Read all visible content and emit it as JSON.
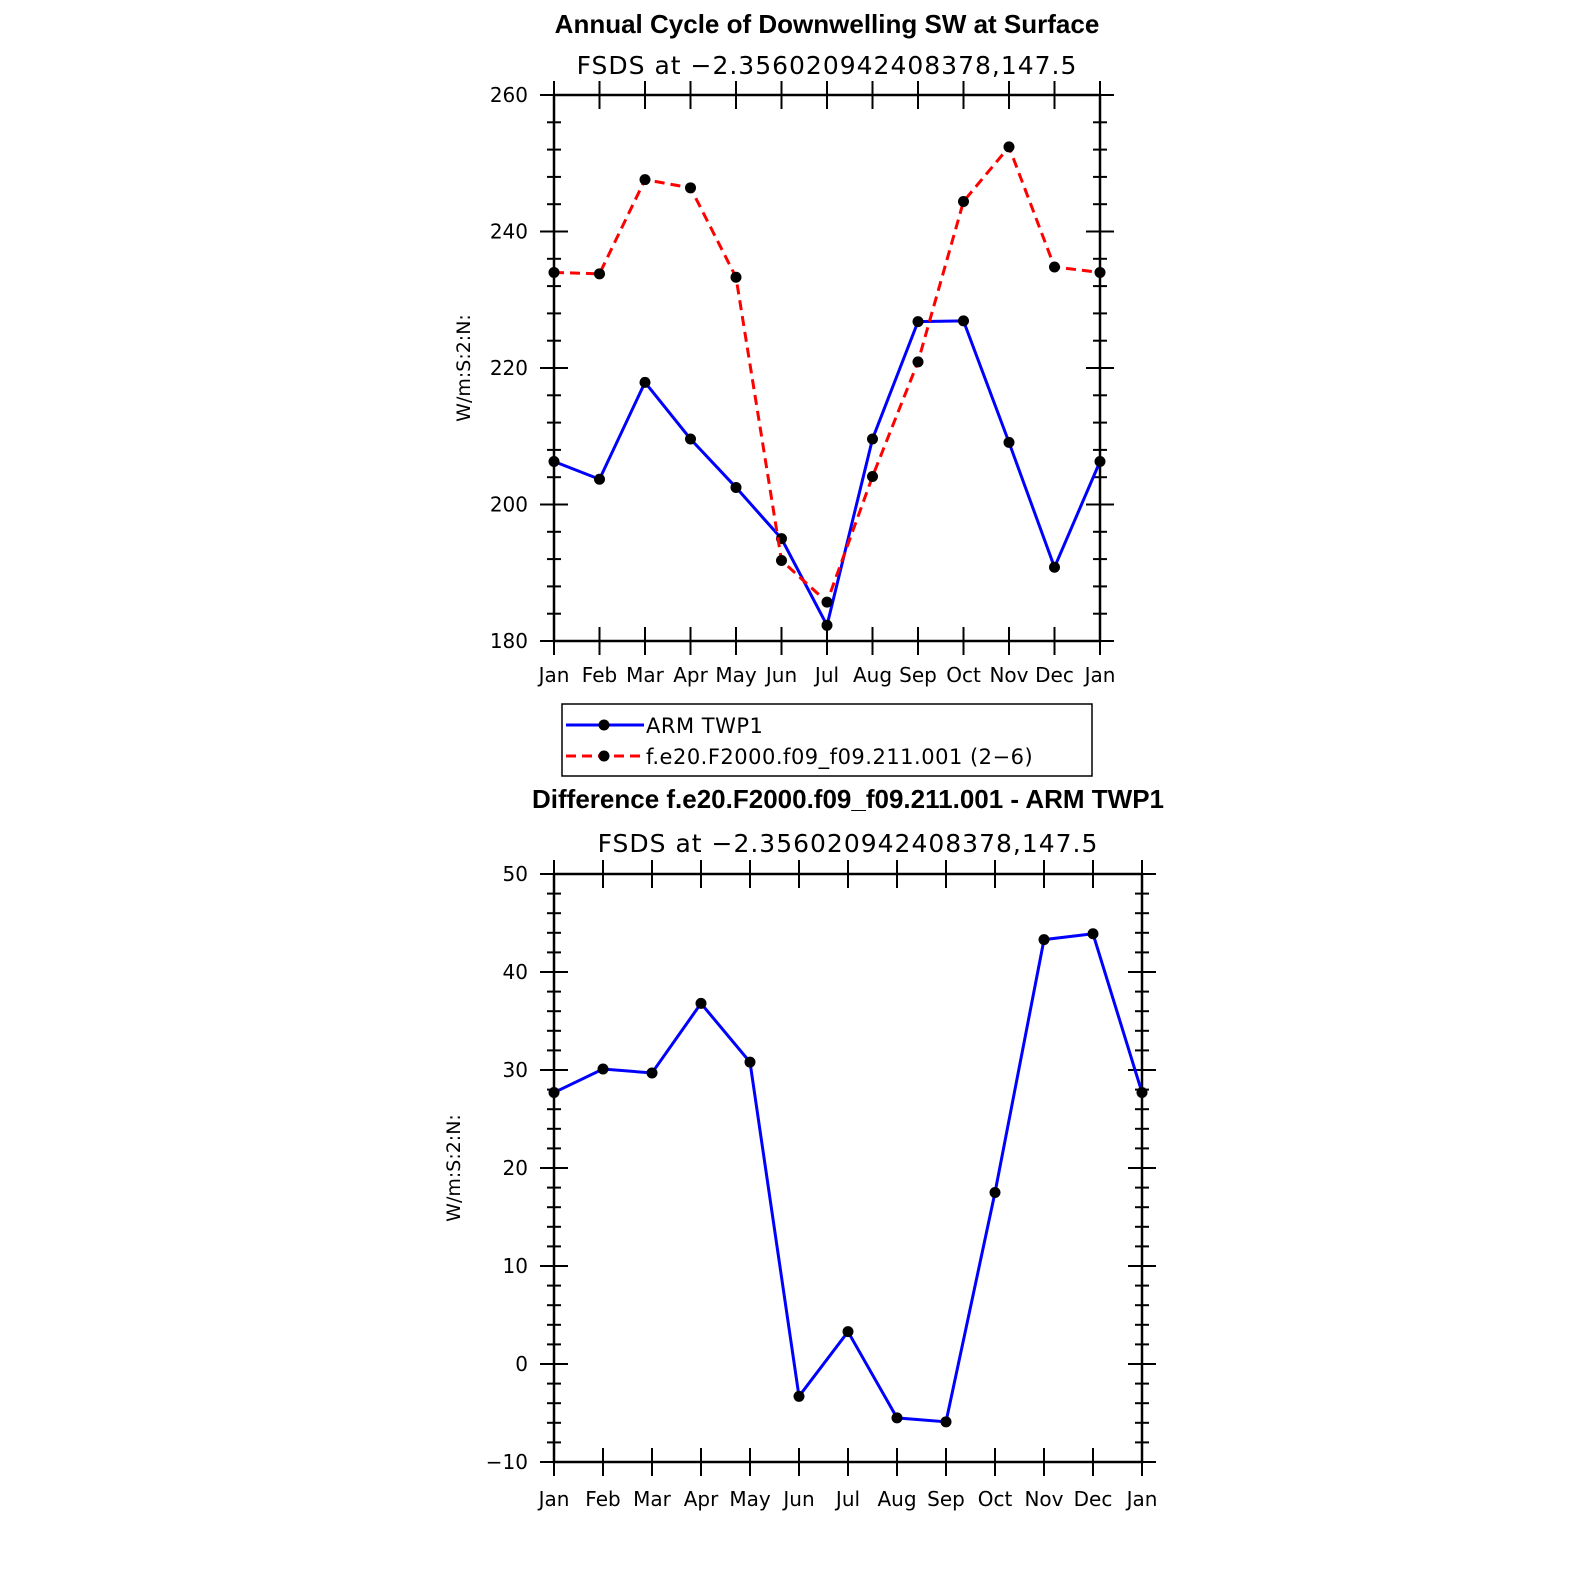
{
  "chart_data": [
    {
      "type": "line",
      "title": "Annual Cycle of Downwelling SW at Surface",
      "subtitle": "FSDS at −2.356020942408378,147.5",
      "xlabel": "",
      "ylabel": "W/m:S:2:N:",
      "ylim": [
        180,
        260
      ],
      "yticks": [
        180,
        200,
        220,
        240,
        260
      ],
      "categories": [
        "Jan",
        "Feb",
        "Mar",
        "Apr",
        "May",
        "Jun",
        "Jul",
        "Aug",
        "Sep",
        "Oct",
        "Nov",
        "Dec",
        "Jan"
      ],
      "legend_placement": "below",
      "series": [
        {
          "name": "ARM TWP1",
          "color": "#0000ff",
          "dash": "solid",
          "values": [
            206.3,
            203.7,
            217.9,
            209.6,
            202.5,
            195.0,
            182.3,
            209.6,
            226.8,
            226.9,
            209.1,
            190.8,
            206.3
          ]
        },
        {
          "name": "f.e20.F2000.f09_f09.211.001 (2−6)",
          "color": "#ff0000",
          "dash": "dashed",
          "values": [
            234.0,
            233.8,
            247.6,
            246.4,
            233.3,
            191.8,
            185.7,
            204.1,
            220.9,
            244.4,
            252.4,
            234.8,
            234.0
          ]
        }
      ]
    },
    {
      "type": "line",
      "title": "Difference f.e20.F2000.f09_f09.211.001 - ARM TWP1",
      "subtitle": "FSDS at −2.356020942408378,147.5",
      "xlabel": "",
      "ylabel": "W/m:S:2:N:",
      "ylim": [
        -10,
        50
      ],
      "yticks": [
        -10,
        0,
        10,
        20,
        30,
        40,
        50
      ],
      "ytick_labels": [
        "−10",
        "0",
        "10",
        "20",
        "30",
        "40",
        "50"
      ],
      "categories": [
        "Jan",
        "Feb",
        "Mar",
        "Apr",
        "May",
        "Jun",
        "Jul",
        "Aug",
        "Sep",
        "Oct",
        "Nov",
        "Dec",
        "Jan"
      ],
      "series": [
        {
          "color": "#0000ff",
          "dash": "solid",
          "values": [
            27.7,
            30.1,
            29.7,
            36.8,
            30.8,
            -3.3,
            3.3,
            -5.5,
            -5.9,
            17.5,
            43.3,
            43.9,
            27.7
          ]
        }
      ]
    }
  ]
}
